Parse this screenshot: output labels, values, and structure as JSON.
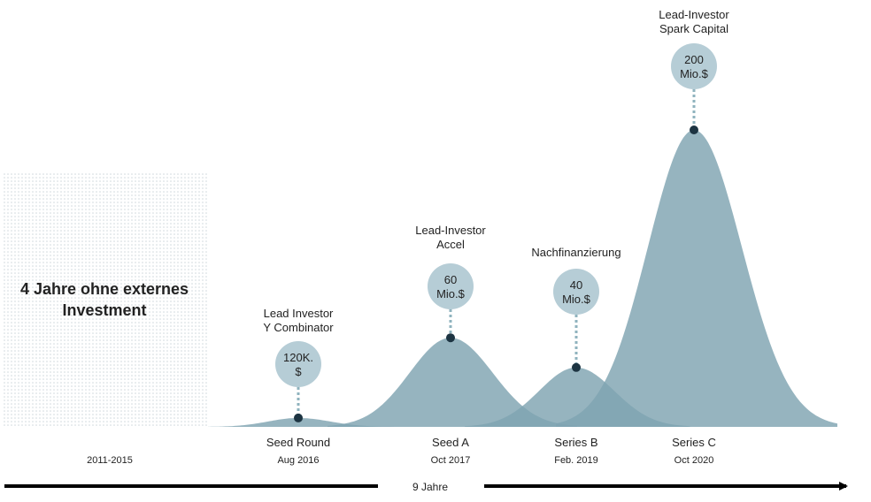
{
  "chart_data": {
    "type": "area",
    "prefix_block": {
      "label_lines": [
        "4 Jahre ohne externes",
        "Investment"
      ],
      "period": "2011-2015"
    },
    "rounds": [
      {
        "name": "Seed Round",
        "date": "Aug 2016",
        "amount_lines": [
          "120K.",
          "$"
        ],
        "investor_lines": [
          "Lead Investor",
          "Y Combinator"
        ],
        "relative_peak": 0.03
      },
      {
        "name": "Seed A",
        "date": "Oct 2017",
        "amount_lines": [
          "60",
          "Mio.$"
        ],
        "investor_lines": [
          "Lead-Investor",
          "Accel"
        ],
        "relative_peak": 0.3
      },
      {
        "name": "Series B",
        "date": "Feb. 2019",
        "amount_lines": [
          "40",
          "Mio.$"
        ],
        "investor_lines": [
          "Nachfinanzierung"
        ],
        "relative_peak": 0.2
      },
      {
        "name": "Series C",
        "date": "Oct 2020",
        "amount_lines": [
          "200",
          "Mio.$"
        ],
        "investor_lines": [
          "Lead-Investor",
          "Spark Capital"
        ],
        "relative_peak": 1.0
      }
    ],
    "timeline_label": "9 Jahre",
    "colors": {
      "area": "#7fa3b1",
      "bubble": "#b6cdd6",
      "marker": "#1d3442",
      "dots": "#8fb3be",
      "prefix_text": "#8fb0bd",
      "pattern": "#cfd8dc",
      "axis": "#000000"
    }
  }
}
